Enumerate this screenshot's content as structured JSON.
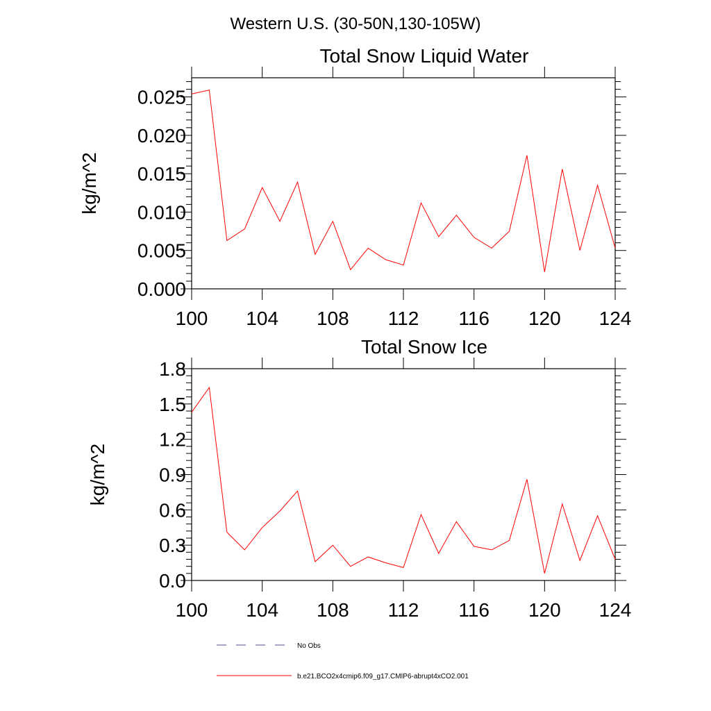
{
  "figure": {
    "suptitle": "Western U.S. (30-50N,130-105W)"
  },
  "chart_data": [
    {
      "type": "line",
      "title": "Total Snow Liquid Water",
      "xlabel": "",
      "ylabel": "kg/m^2",
      "xlim": [
        100,
        124
      ],
      "ylim": [
        0,
        0.0275
      ],
      "x_ticks": [
        100,
        104,
        108,
        112,
        116,
        120,
        124
      ],
      "x_tick_labels": [
        "100",
        "104",
        "108",
        "112",
        "116",
        "120",
        "124"
      ],
      "y_ticks": [
        0,
        0.005,
        0.01,
        0.015,
        0.02,
        0.025
      ],
      "y_tick_labels": [
        "0.000",
        "0.005",
        "0.010",
        "0.015",
        "0.020",
        "0.025"
      ],
      "grid": false,
      "x": [
        100,
        101,
        102,
        103,
        104,
        105,
        106,
        107,
        108,
        109,
        110,
        111,
        112,
        113,
        114,
        115,
        116,
        117,
        118,
        119,
        120,
        121,
        122,
        123,
        124
      ],
      "series": [
        {
          "name": "b.e21.BCO2x4cmip6.f09_g17.CMIP6-abrupt4xCO2.001",
          "color": "#ff0000",
          "values": [
            0.0254,
            0.0259,
            0.0063,
            0.0078,
            0.0132,
            0.0088,
            0.0139,
            0.0045,
            0.0088,
            0.0025,
            0.0053,
            0.0038,
            0.0031,
            0.0112,
            0.0068,
            0.0096,
            0.0067,
            0.0053,
            0.0075,
            0.0174,
            0.0022,
            0.0156,
            0.005,
            0.0135,
            0.0053
          ]
        }
      ]
    },
    {
      "type": "line",
      "title": "Total Snow Ice",
      "xlabel": "",
      "ylabel": "kg/m^2",
      "xlim": [
        100,
        124
      ],
      "ylim": [
        0,
        1.8
      ],
      "x_ticks": [
        100,
        104,
        108,
        112,
        116,
        120,
        124
      ],
      "x_tick_labels": [
        "100",
        "104",
        "108",
        "112",
        "116",
        "120",
        "124"
      ],
      "y_ticks": [
        0,
        0.3,
        0.6,
        0.9,
        1.2,
        1.5,
        1.8
      ],
      "y_tick_labels": [
        "0.0",
        "0.3",
        "0.6",
        "0.9",
        "1.2",
        "1.5",
        "1.8"
      ],
      "grid": false,
      "x": [
        100,
        101,
        102,
        103,
        104,
        105,
        106,
        107,
        108,
        109,
        110,
        111,
        112,
        113,
        114,
        115,
        116,
        117,
        118,
        119,
        120,
        121,
        122,
        123,
        124
      ],
      "series": [
        {
          "name": "b.e21.BCO2x4cmip6.f09_g17.CMIP6-abrupt4xCO2.001",
          "color": "#ff0000",
          "values": [
            1.43,
            1.64,
            0.41,
            0.26,
            0.45,
            0.59,
            0.76,
            0.16,
            0.3,
            0.12,
            0.2,
            0.15,
            0.11,
            0.56,
            0.23,
            0.5,
            0.29,
            0.26,
            0.34,
            0.86,
            0.06,
            0.65,
            0.17,
            0.55,
            0.18
          ]
        }
      ]
    }
  ],
  "legend": {
    "placement": "bottom-center",
    "entries": [
      {
        "label": "No Obs",
        "style": "dashed",
        "color": "#4b4b8c"
      },
      {
        "label": "b.e21.BCO2x4cmip6.f09_g17.CMIP6-abrupt4xCO2.001",
        "style": "solid",
        "color": "#ff0000"
      }
    ]
  }
}
